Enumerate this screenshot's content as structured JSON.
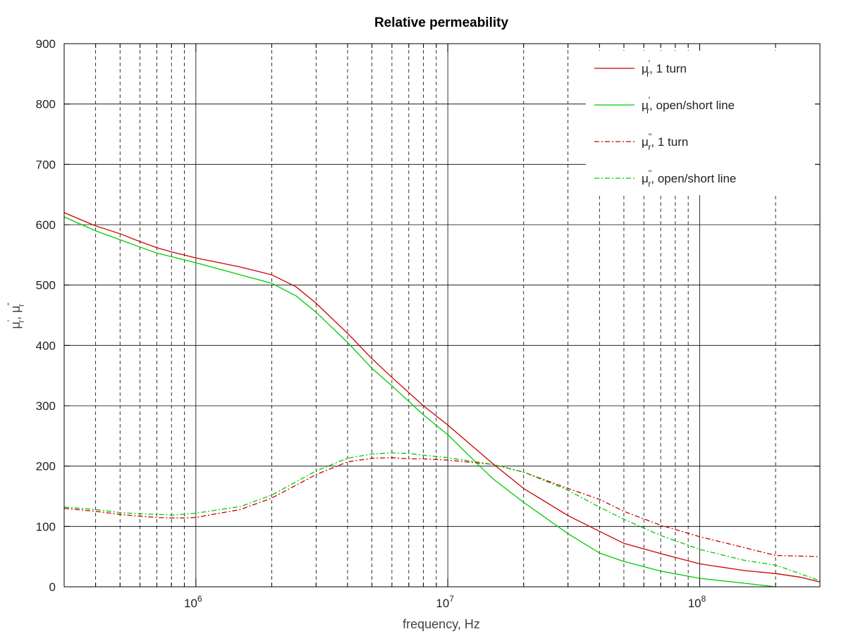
{
  "chart_data": {
    "type": "line",
    "title": "Relative permeability",
    "xlabel": "frequency, Hz",
    "ylabel": {
      "base": "μ",
      "sub": "r",
      "sup1": "'",
      "sup2": "''",
      "sep": ", "
    },
    "x_scale": "log",
    "xlim": [
      300000,
      300000000
    ],
    "ylim": [
      0,
      900
    ],
    "yticks": [
      0,
      100,
      200,
      300,
      400,
      500,
      600,
      700,
      800,
      900
    ],
    "xticks": [
      {
        "value": 1000000,
        "base": "10",
        "exp": "6"
      },
      {
        "value": 10000000,
        "base": "10",
        "exp": "7"
      },
      {
        "value": 100000000,
        "base": "10",
        "exp": "8"
      }
    ],
    "grid": true,
    "legend_position": "top-right",
    "series": [
      {
        "name": {
          "base": "μ",
          "sup": "'",
          "sub": "r",
          "rest": ", 1 turn"
        },
        "color": "#cc0000",
        "dash": "solid",
        "x": [
          300000,
          400000,
          500000,
          600000,
          700000,
          800000,
          1000000,
          1500000,
          2000000,
          2500000,
          3000000,
          4000000,
          5000000,
          6000000,
          8000000,
          10000000,
          15000000,
          20000000,
          30000000,
          40000000,
          50000000,
          70000000,
          100000000,
          150000000,
          200000000,
          250000000,
          300000000
        ],
        "y": [
          620,
          598,
          585,
          572,
          562,
          555,
          545,
          530,
          517,
          497,
          470,
          420,
          378,
          347,
          300,
          268,
          205,
          163,
          118,
          92,
          72,
          55,
          38,
          27,
          22,
          16,
          8
        ]
      },
      {
        "name": {
          "base": "μ",
          "sup": "'",
          "sub": "r",
          "rest": ", open/short line"
        },
        "color": "#00cc00",
        "dash": "solid",
        "x": [
          300000,
          400000,
          500000,
          600000,
          700000,
          800000,
          1000000,
          1500000,
          2000000,
          2500000,
          3000000,
          4000000,
          5000000,
          6000000,
          8000000,
          10000000,
          15000000,
          20000000,
          30000000,
          40000000,
          50000000,
          70000000,
          100000000,
          150000000,
          200000000
        ],
        "y": [
          613,
          590,
          575,
          563,
          553,
          547,
          537,
          517,
          503,
          482,
          455,
          405,
          362,
          333,
          285,
          252,
          180,
          140,
          88,
          56,
          42,
          26,
          14,
          6,
          0
        ]
      },
      {
        "name": {
          "base": "μ",
          "sup": "''",
          "sub": "r",
          "rest": ", 1 turn"
        },
        "color": "#cc0000",
        "dash": "dashdot",
        "x": [
          300000,
          400000,
          500000,
          600000,
          700000,
          800000,
          900000,
          1000000,
          1500000,
          2000000,
          3000000,
          4000000,
          5000000,
          6000000,
          7000000,
          8000000,
          10000000,
          15000000,
          20000000,
          30000000,
          40000000,
          50000000,
          70000000,
          100000000,
          150000000,
          200000000,
          300000000
        ],
        "y": [
          130,
          125,
          120,
          117,
          115,
          114,
          114,
          115,
          128,
          147,
          186,
          207,
          213,
          214,
          212,
          212,
          210,
          203,
          190,
          163,
          145,
          125,
          102,
          83,
          65,
          52,
          50
        ]
      },
      {
        "name": {
          "base": "μ",
          "sup": "''",
          "sub": "r",
          "rest": ", open/short line"
        },
        "color": "#00cc00",
        "dash": "dashdot",
        "x": [
          300000,
          400000,
          500000,
          600000,
          700000,
          800000,
          900000,
          1000000,
          1500000,
          2000000,
          3000000,
          4000000,
          5000000,
          6000000,
          7000000,
          8000000,
          10000000,
          15000000,
          20000000,
          30000000,
          40000000,
          50000000,
          70000000,
          100000000,
          150000000,
          200000000,
          220000000,
          300000000
        ],
        "y": [
          132,
          128,
          123,
          121,
          120,
          119,
          120,
          122,
          133,
          152,
          192,
          213,
          220,
          222,
          221,
          218,
          214,
          203,
          190,
          160,
          132,
          112,
          85,
          62,
          44,
          36,
          30,
          10
        ]
      }
    ]
  }
}
